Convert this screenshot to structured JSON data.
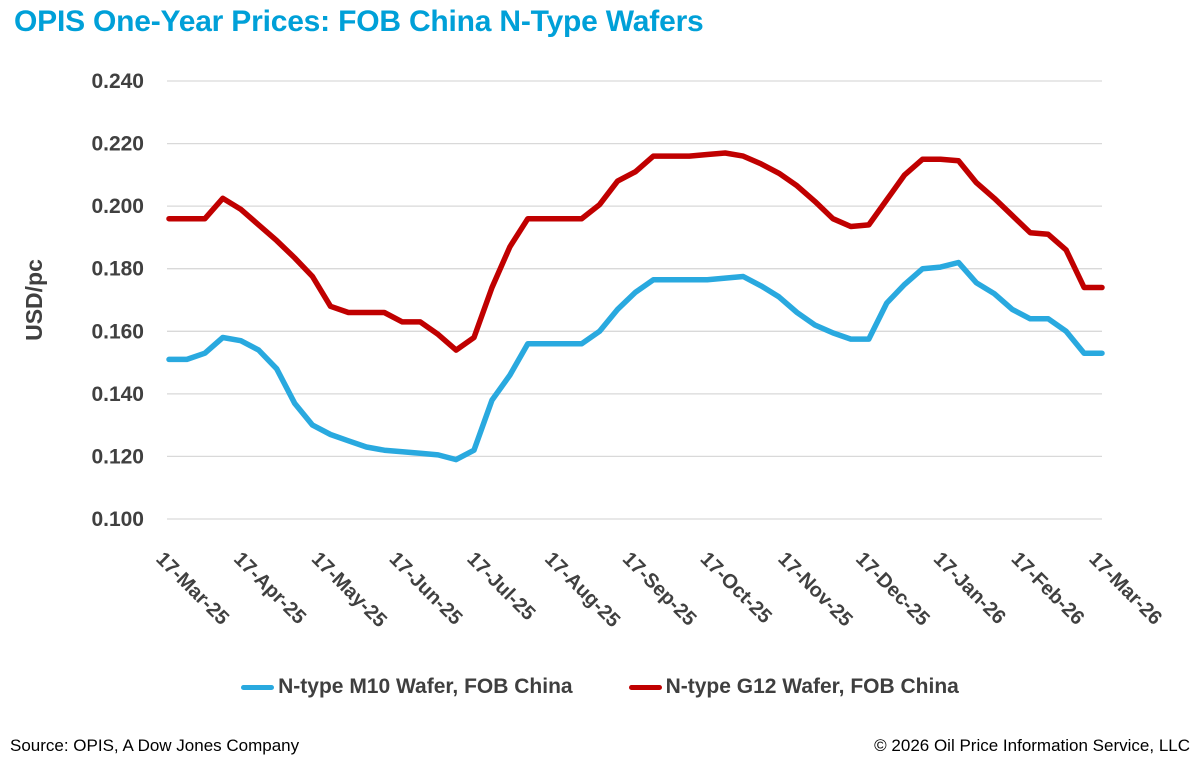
{
  "header": {
    "title": "OPIS One-Year Prices: FOB China N-Type Wafers",
    "title_color": "#00A0D8"
  },
  "legend": {
    "items": [
      {
        "label": "N-type M10 Wafer, FOB China",
        "color": "#29A9DF"
      },
      {
        "label": "N-type G12 Wafer, FOB China",
        "color": "#C00000"
      }
    ]
  },
  "footer": {
    "source": "Source: OPIS, A Dow Jones Company",
    "copyright": "© 2026 Oil Price Information Service, LLC"
  },
  "chart_data": {
    "type": "line",
    "title": "OPIS One-Year Prices: FOB China N-Type Wafers",
    "ylabel": "USD/pc",
    "xlabel": "",
    "ylim": [
      0.1,
      0.24
    ],
    "ytick_step": 0.02,
    "ytick_labels": [
      "0.240",
      "0.220",
      "0.200",
      "0.180",
      "0.160",
      "0.140",
      "0.120",
      "0.100"
    ],
    "x_tick_labels": [
      "17-Mar-25",
      "17-Apr-25",
      "17-May-25",
      "17-Jun-25",
      "17-Jul-25",
      "17-Aug-25",
      "17-Sep-25",
      "17-Oct-25",
      "17-Nov-25",
      "17-Dec-25",
      "17-Jan-26",
      "17-Feb-26",
      "17-Mar-26"
    ],
    "x_frequency": "weekly",
    "grid": "horizontal",
    "grid_color": "#D9D9D9",
    "axis_text_color": "#404040",
    "legend_position": "bottom",
    "x": [
      "17-Mar-25",
      "24-Mar-25",
      "31-Mar-25",
      "7-Apr-25",
      "14-Apr-25",
      "21-Apr-25",
      "28-Apr-25",
      "5-May-25",
      "12-May-25",
      "19-May-25",
      "26-May-25",
      "2-Jun-25",
      "9-Jun-25",
      "16-Jun-25",
      "23-Jun-25",
      "30-Jun-25",
      "7-Jul-25",
      "14-Jul-25",
      "21-Jul-25",
      "28-Jul-25",
      "4-Aug-25",
      "11-Aug-25",
      "18-Aug-25",
      "25-Aug-25",
      "1-Sep-25",
      "8-Sep-25",
      "15-Sep-25",
      "22-Sep-25",
      "29-Sep-25",
      "6-Oct-25",
      "13-Oct-25",
      "20-Oct-25",
      "27-Oct-25",
      "3-Nov-25",
      "10-Nov-25",
      "17-Nov-25",
      "24-Nov-25",
      "1-Dec-25",
      "8-Dec-25",
      "15-Dec-25",
      "22-Dec-25",
      "29-Dec-25",
      "5-Jan-26",
      "12-Jan-26",
      "19-Jan-26",
      "26-Jan-26",
      "2-Feb-26",
      "9-Feb-26",
      "16-Feb-26",
      "23-Feb-26",
      "2-Mar-26",
      "9-Mar-26",
      "16-Mar-26"
    ],
    "series": [
      {
        "name": "N-type M10 Wafer, FOB China",
        "color": "#29A9DF",
        "values": [
          0.151,
          0.151,
          0.153,
          0.158,
          0.157,
          0.154,
          0.148,
          0.137,
          0.13,
          0.127,
          0.125,
          0.123,
          0.122,
          0.1215,
          0.121,
          0.1205,
          0.119,
          0.122,
          0.138,
          0.146,
          0.156,
          0.156,
          0.156,
          0.156,
          0.16,
          0.167,
          0.1725,
          0.1765,
          0.1765,
          0.1765,
          0.1765,
          0.177,
          0.1775,
          0.1745,
          0.171,
          0.166,
          0.162,
          0.1595,
          0.1575,
          0.1575,
          0.169,
          0.175,
          0.18,
          0.1805,
          0.182,
          0.1755,
          0.172,
          0.167,
          0.164,
          0.164,
          0.16,
          0.153,
          0.153
        ]
      },
      {
        "name": "N-type G12 Wafer, FOB China",
        "color": "#C00000",
        "values": [
          0.196,
          0.196,
          0.196,
          0.2025,
          0.199,
          0.194,
          0.189,
          0.1835,
          0.1775,
          0.168,
          0.166,
          0.166,
          0.166,
          0.163,
          0.163,
          0.159,
          0.154,
          0.158,
          0.174,
          0.187,
          0.196,
          0.196,
          0.196,
          0.196,
          0.2005,
          0.208,
          0.211,
          0.216,
          0.216,
          0.216,
          0.2165,
          0.217,
          0.216,
          0.2135,
          0.2105,
          0.2065,
          0.2015,
          0.196,
          0.1935,
          0.194,
          0.202,
          0.21,
          0.215,
          0.215,
          0.2145,
          0.2075,
          0.2025,
          0.197,
          0.1915,
          0.191,
          0.186,
          0.174,
          0.174
        ]
      }
    ]
  }
}
